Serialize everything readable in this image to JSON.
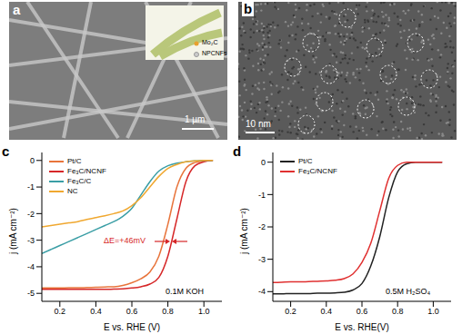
{
  "images": [
    {
      "panel_label": "a",
      "scale_bar": "1 µm",
      "inset_legend": [
        "Mo₂C",
        "NPCNFs"
      ]
    },
    {
      "panel_label": "b",
      "scale_bar": "10 nm"
    }
  ],
  "chart_data": [
    {
      "type": "line",
      "panel_label": "c",
      "x_label": "E vs. RHE (V)",
      "y_label": "j (mA cm⁻²)",
      "annotations": [
        "ΔE=+46mV",
        "0.1M KOH"
      ],
      "legend": "upper left",
      "xlim": [
        0.1,
        1.1
      ],
      "xticks": [
        0.2,
        0.4,
        0.6,
        0.8,
        {
          "value": 1,
          "label": "1.0"
        }
      ],
      "ylim": [
        -5.3,
        0.3
      ],
      "yticks": [
        -5,
        -4,
        -3,
        -2,
        -1,
        0
      ],
      "x": [
        0.1,
        0.15,
        0.2,
        0.25,
        0.3,
        0.35,
        0.4,
        0.45,
        0.5,
        0.55,
        0.6,
        0.65,
        0.7,
        0.75,
        0.8,
        0.85,
        0.9,
        0.95,
        1.0,
        1.05
      ],
      "series": [
        {
          "name": "Pt/C",
          "color": "#e8743b",
          "values": [
            -4.8,
            -4.8,
            -4.8,
            -4.79,
            -4.79,
            -4.78,
            -4.77,
            -4.76,
            -4.75,
            -4.7,
            -4.6,
            -4.45,
            -4.2,
            -3.6,
            -2.4,
            -1.0,
            -0.3,
            -0.08,
            -0.02,
            0
          ]
        },
        {
          "name": "Fe₃C/NCNF",
          "color": "#d62728",
          "values": [
            -4.85,
            -4.85,
            -4.85,
            -4.85,
            -4.85,
            -4.85,
            -4.85,
            -4.85,
            -4.84,
            -4.83,
            -4.8,
            -4.75,
            -4.65,
            -4.4,
            -3.6,
            -2.2,
            -0.8,
            -0.2,
            -0.05,
            0
          ]
        },
        {
          "name": "Fe₃C/C",
          "color": "#3a9ea5",
          "values": [
            -3.5,
            -3.35,
            -3.2,
            -3.05,
            -2.9,
            -2.75,
            -2.6,
            -2.45,
            -2.3,
            -2.1,
            -1.8,
            -1.3,
            -0.8,
            -0.4,
            -0.2,
            -0.1,
            -0.05,
            -0.02,
            0,
            0
          ]
        },
        {
          "name": "NC",
          "color": "#f0a830",
          "values": [
            -2.5,
            -2.45,
            -2.4,
            -2.35,
            -2.3,
            -2.22,
            -2.15,
            -2.08,
            -2.0,
            -1.9,
            -1.7,
            -1.4,
            -1.0,
            -0.6,
            -0.3,
            -0.15,
            -0.05,
            -0.02,
            0,
            0
          ]
        }
      ]
    },
    {
      "type": "line",
      "panel_label": "d",
      "x_label": "E vs. RHE(V)",
      "y_label": "j (mA cm⁻²)",
      "annotations": [
        "0.5M H₂SO₄"
      ],
      "legend": "upper left",
      "xlim": [
        0.1,
        1.1
      ],
      "xticks": [
        0.2,
        0.4,
        0.6,
        0.8,
        {
          "value": 1,
          "label": "1.0"
        }
      ],
      "ylim": [
        -4.3,
        0.3
      ],
      "yticks": [
        -4,
        -3,
        -2,
        -1,
        0
      ],
      "x": [
        0.1,
        0.15,
        0.2,
        0.25,
        0.3,
        0.35,
        0.4,
        0.45,
        0.5,
        0.55,
        0.6,
        0.65,
        0.7,
        0.75,
        0.8,
        0.85,
        0.9,
        0.95,
        1.0,
        1.05
      ],
      "series": [
        {
          "name": "Pt/C",
          "color": "#222222",
          "values": [
            -4.07,
            -4.07,
            -4.06,
            -4.06,
            -4.06,
            -4.05,
            -4.05,
            -4.04,
            -4.02,
            -3.95,
            -3.75,
            -3.2,
            -2.3,
            -1.1,
            -0.3,
            -0.05,
            0,
            0,
            0,
            0
          ]
        },
        {
          "name": "Fe₃C/NCNF",
          "color": "#e03030",
          "values": [
            -3.72,
            -3.71,
            -3.7,
            -3.7,
            -3.69,
            -3.68,
            -3.67,
            -3.65,
            -3.6,
            -3.45,
            -3.1,
            -2.5,
            -1.5,
            -0.5,
            -0.1,
            0,
            0,
            0,
            0,
            0
          ]
        }
      ]
    }
  ]
}
